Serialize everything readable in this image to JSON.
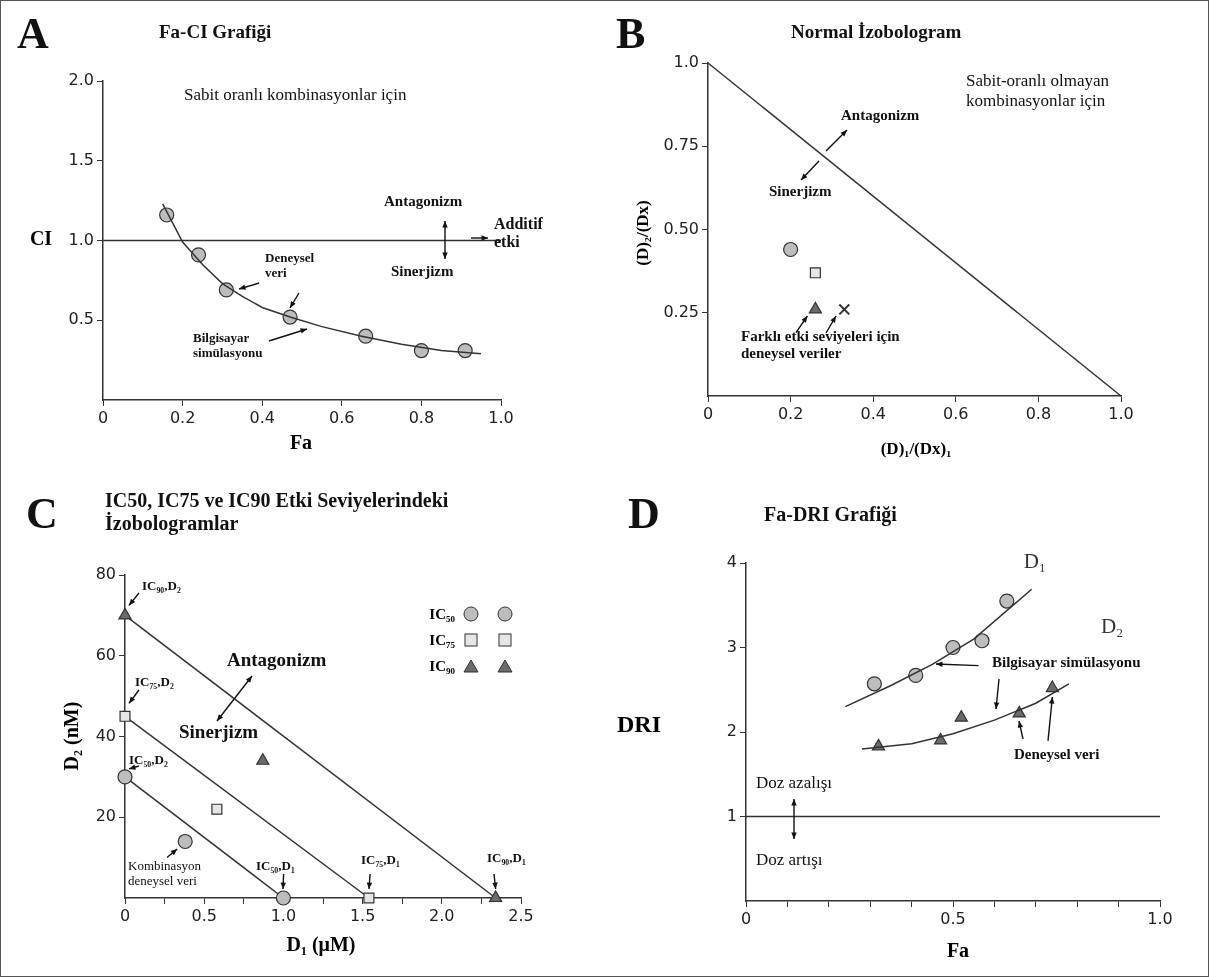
{
  "chart_data": [
    {
      "type": "scatter",
      "title": "Fa-CI Grafiği",
      "xlabel": "Fa",
      "ylabel": "CI",
      "annotations": [
        "A",
        "Sabit oranlı kombinasyonlar için",
        "Antagonizm",
        "Sinerjizm",
        "Deneysel veri",
        "Bilgisayar simülasyonu"
      ],
      "xlim": [
        0,
        1
      ],
      "ylim": [
        0,
        2
      ],
      "xticks": [
        0,
        0.2,
        0.4,
        0.6,
        0.8,
        {
          "value": 1,
          "label": "1.0"
        }
      ],
      "yticks": [
        0.5,
        {
          "value": 1,
          "label": "1.0"
        },
        1.5,
        {
          "value": 2,
          "label": "2.0"
        }
      ],
      "ref_lines": [
        {
          "axis": "y",
          "value": 1,
          "label": "Additif etki"
        }
      ],
      "series": [
        {
          "type": "scatter",
          "marker": "circle",
          "color": "#bdbdbd",
          "x": [
            0.16,
            0.24,
            0.31,
            0.47,
            0.66,
            0.8,
            0.91
          ],
          "values": [
            1.16,
            0.91,
            0.69,
            0.52,
            0.4,
            0.31,
            0.31
          ]
        },
        {
          "type": "line",
          "marker": "none",
          "color": "#333333",
          "x": [
            0.15,
            0.2,
            0.25,
            0.3,
            0.35,
            0.4,
            0.47,
            0.55,
            0.65,
            0.75,
            0.85,
            0.95
          ],
          "values": [
            1.23,
            0.99,
            0.85,
            0.73,
            0.65,
            0.58,
            0.52,
            0.46,
            0.4,
            0.35,
            0.31,
            0.29
          ]
        }
      ]
    },
    {
      "type": "scatter",
      "title": "Normal İzobologram",
      "xlabel": "(D)₁/(Dx)₁",
      "ylabel": "(D)₂/(Dx)",
      "annotations": [
        "B",
        "Sabit-oranlı olmayan kombinasyonlar için",
        "Antagonizm",
        "Sinerjizm",
        {
          "text": "Farklı etki seviyeleri için deneysel veriler",
          "x": 0.26,
          "y": 0.26
        }
      ],
      "xlim": [
        0,
        1
      ],
      "ylim": [
        0,
        1
      ],
      "xticks": [
        0,
        0.2,
        0.4,
        0.6,
        0.8,
        {
          "value": 1,
          "label": "1.0"
        }
      ],
      "yticks": [
        0.25,
        {
          "value": 0.5,
          "label": "0.50"
        },
        0.75,
        {
          "value": 1,
          "label": "1.0"
        }
      ],
      "series": [
        {
          "type": "line",
          "marker": "none",
          "color": "#333333",
          "x": [
            0,
            1
          ],
          "values": [
            1,
            0
          ]
        },
        {
          "type": "scatter",
          "marker": "circle",
          "color": "#bdbdbd",
          "x": [
            0.2
          ],
          "values": [
            0.44
          ]
        },
        {
          "type": "scatter",
          "marker": "square",
          "color": "#e6e6e6",
          "x": [
            0.26
          ],
          "values": [
            0.37
          ]
        },
        {
          "type": "scatter",
          "marker": "triangle",
          "color": "#6b6b6b",
          "x": [
            0.26
          ],
          "values": [
            0.26
          ]
        },
        {
          "type": "scatter",
          "marker": "cross",
          "color": "#333333",
          "x": [
            0.33
          ],
          "values": [
            0.26
          ]
        }
      ]
    },
    {
      "type": "scatter",
      "title": "IC50, IC75 ve IC90 Etki Seviyelerindeki İzobologramlar",
      "xlabel": "D₁ (μM)",
      "ylabel": "D₂ (nM)",
      "annotations": [
        "C",
        {
          "text": "IC₉₀,D₂",
          "x": 0,
          "y": 70
        },
        {
          "text": "IC₇₅,D₂",
          "x": 0,
          "y": 45
        },
        {
          "text": "IC₅₀,D₂",
          "x": 0,
          "y": 30
        },
        {
          "text": "Kombinasyon deneysel veri",
          "x": 0.38,
          "y": 14
        },
        {
          "text": "IC₅₀,D₁",
          "x": 1,
          "y": 0
        },
        {
          "text": "IC₇₅,D₁",
          "x": 1.54,
          "y": 0
        },
        {
          "text": "IC₉₀,D₁",
          "x": 2.34,
          "y": 0
        },
        "Antagonizm",
        "Sinerjizm"
      ],
      "legend": "top right",
      "xlim": [
        0,
        2.5
      ],
      "ylim": [
        0,
        80
      ],
      "xticks": [
        0,
        {
          "value": 0.25,
          "label": null
        },
        0.5,
        {
          "value": 0.75,
          "label": null
        },
        {
          "value": 1,
          "label": "1.0"
        },
        {
          "value": 1.25,
          "label": null
        },
        1.5,
        {
          "value": 1.75,
          "label": null
        },
        {
          "value": 2,
          "label": "2.0"
        },
        {
          "value": 2.25,
          "label": null
        },
        2.5
      ],
      "yticks": [
        20,
        40,
        60,
        80
      ],
      "series": [
        {
          "name": "IC₅₀",
          "type": "line",
          "marker": "circle",
          "color": "#bdbdbd",
          "x": [
            0,
            1
          ],
          "values": [
            30,
            0
          ]
        },
        {
          "name": "IC₇₅",
          "type": "line",
          "marker": "square",
          "color": "#e6e6e6",
          "x": [
            0,
            1.54
          ],
          "values": [
            45,
            0
          ]
        },
        {
          "name": "IC₉₀",
          "type": "line",
          "marker": "triangle",
          "color": "#6b6b6b",
          "x": [
            0,
            2.34
          ],
          "values": [
            70,
            0
          ]
        },
        {
          "type": "scatter",
          "marker": "circle",
          "color": "#bdbdbd",
          "x": [
            0.38
          ],
          "values": [
            14
          ]
        },
        {
          "type": "scatter",
          "marker": "square",
          "color": "#e6e6e6",
          "x": [
            0.58
          ],
          "values": [
            22
          ]
        },
        {
          "type": "scatter",
          "marker": "triangle",
          "color": "#6b6b6b",
          "x": [
            0.87
          ],
          "values": [
            34
          ]
        }
      ]
    },
    {
      "type": "scatter",
      "title": "Fa-DRI Grafiği",
      "xlabel": "Fa",
      "ylabel": "DRI",
      "annotations": [
        "D",
        {
          "text": "Bilgisayar simülasyonu",
          "x": 0.46,
          "y": 2.8
        },
        {
          "text": "Deneysel veri",
          "x": 0.74,
          "y": 2.52
        },
        "Doz azalışı",
        "Doz artışı"
      ],
      "xlim": [
        0,
        1
      ],
      "ylim": [
        0,
        4
      ],
      "xticks": [
        0,
        {
          "value": 0.1,
          "label": null
        },
        {
          "value": 0.2,
          "label": null
        },
        {
          "value": 0.3,
          "label": null
        },
        {
          "value": 0.4,
          "label": null
        },
        0.5,
        {
          "value": 0.6,
          "label": null
        },
        {
          "value": 0.7,
          "label": null
        },
        {
          "value": 0.8,
          "label": null
        },
        {
          "value": 0.9,
          "label": null
        },
        {
          "value": 1,
          "label": "1.0"
        }
      ],
      "yticks": [
        1,
        2,
        3,
        4
      ],
      "ref_lines": [
        {
          "axis": "y",
          "value": 1
        }
      ],
      "series": [
        {
          "type": "scatter",
          "marker": "circle",
          "color": "#bdbdbd",
          "x": [
            0.31,
            0.41,
            0.5,
            0.57,
            0.63
          ],
          "values": [
            2.57,
            2.67,
            3.0,
            3.08,
            3.55
          ]
        },
        {
          "name": "D₁",
          "type": "line",
          "marker": "none",
          "color": "#333333",
          "x": [
            0.24,
            0.35,
            0.45,
            0.55,
            0.69
          ],
          "values": [
            2.3,
            2.55,
            2.8,
            3.1,
            3.69
          ]
        },
        {
          "type": "scatter",
          "marker": "triangle",
          "color": "#6b6b6b",
          "x": [
            0.32,
            0.47,
            0.52,
            0.66,
            0.74
          ],
          "values": [
            1.83,
            1.9,
            2.17,
            2.22,
            2.52
          ]
        },
        {
          "name": "D₂",
          "type": "line",
          "marker": "none",
          "color": "#333333",
          "x": [
            0.28,
            0.4,
            0.5,
            0.6,
            0.7,
            0.78
          ],
          "values": [
            1.8,
            1.86,
            1.98,
            2.14,
            2.34,
            2.57
          ]
        }
      ]
    }
  ]
}
